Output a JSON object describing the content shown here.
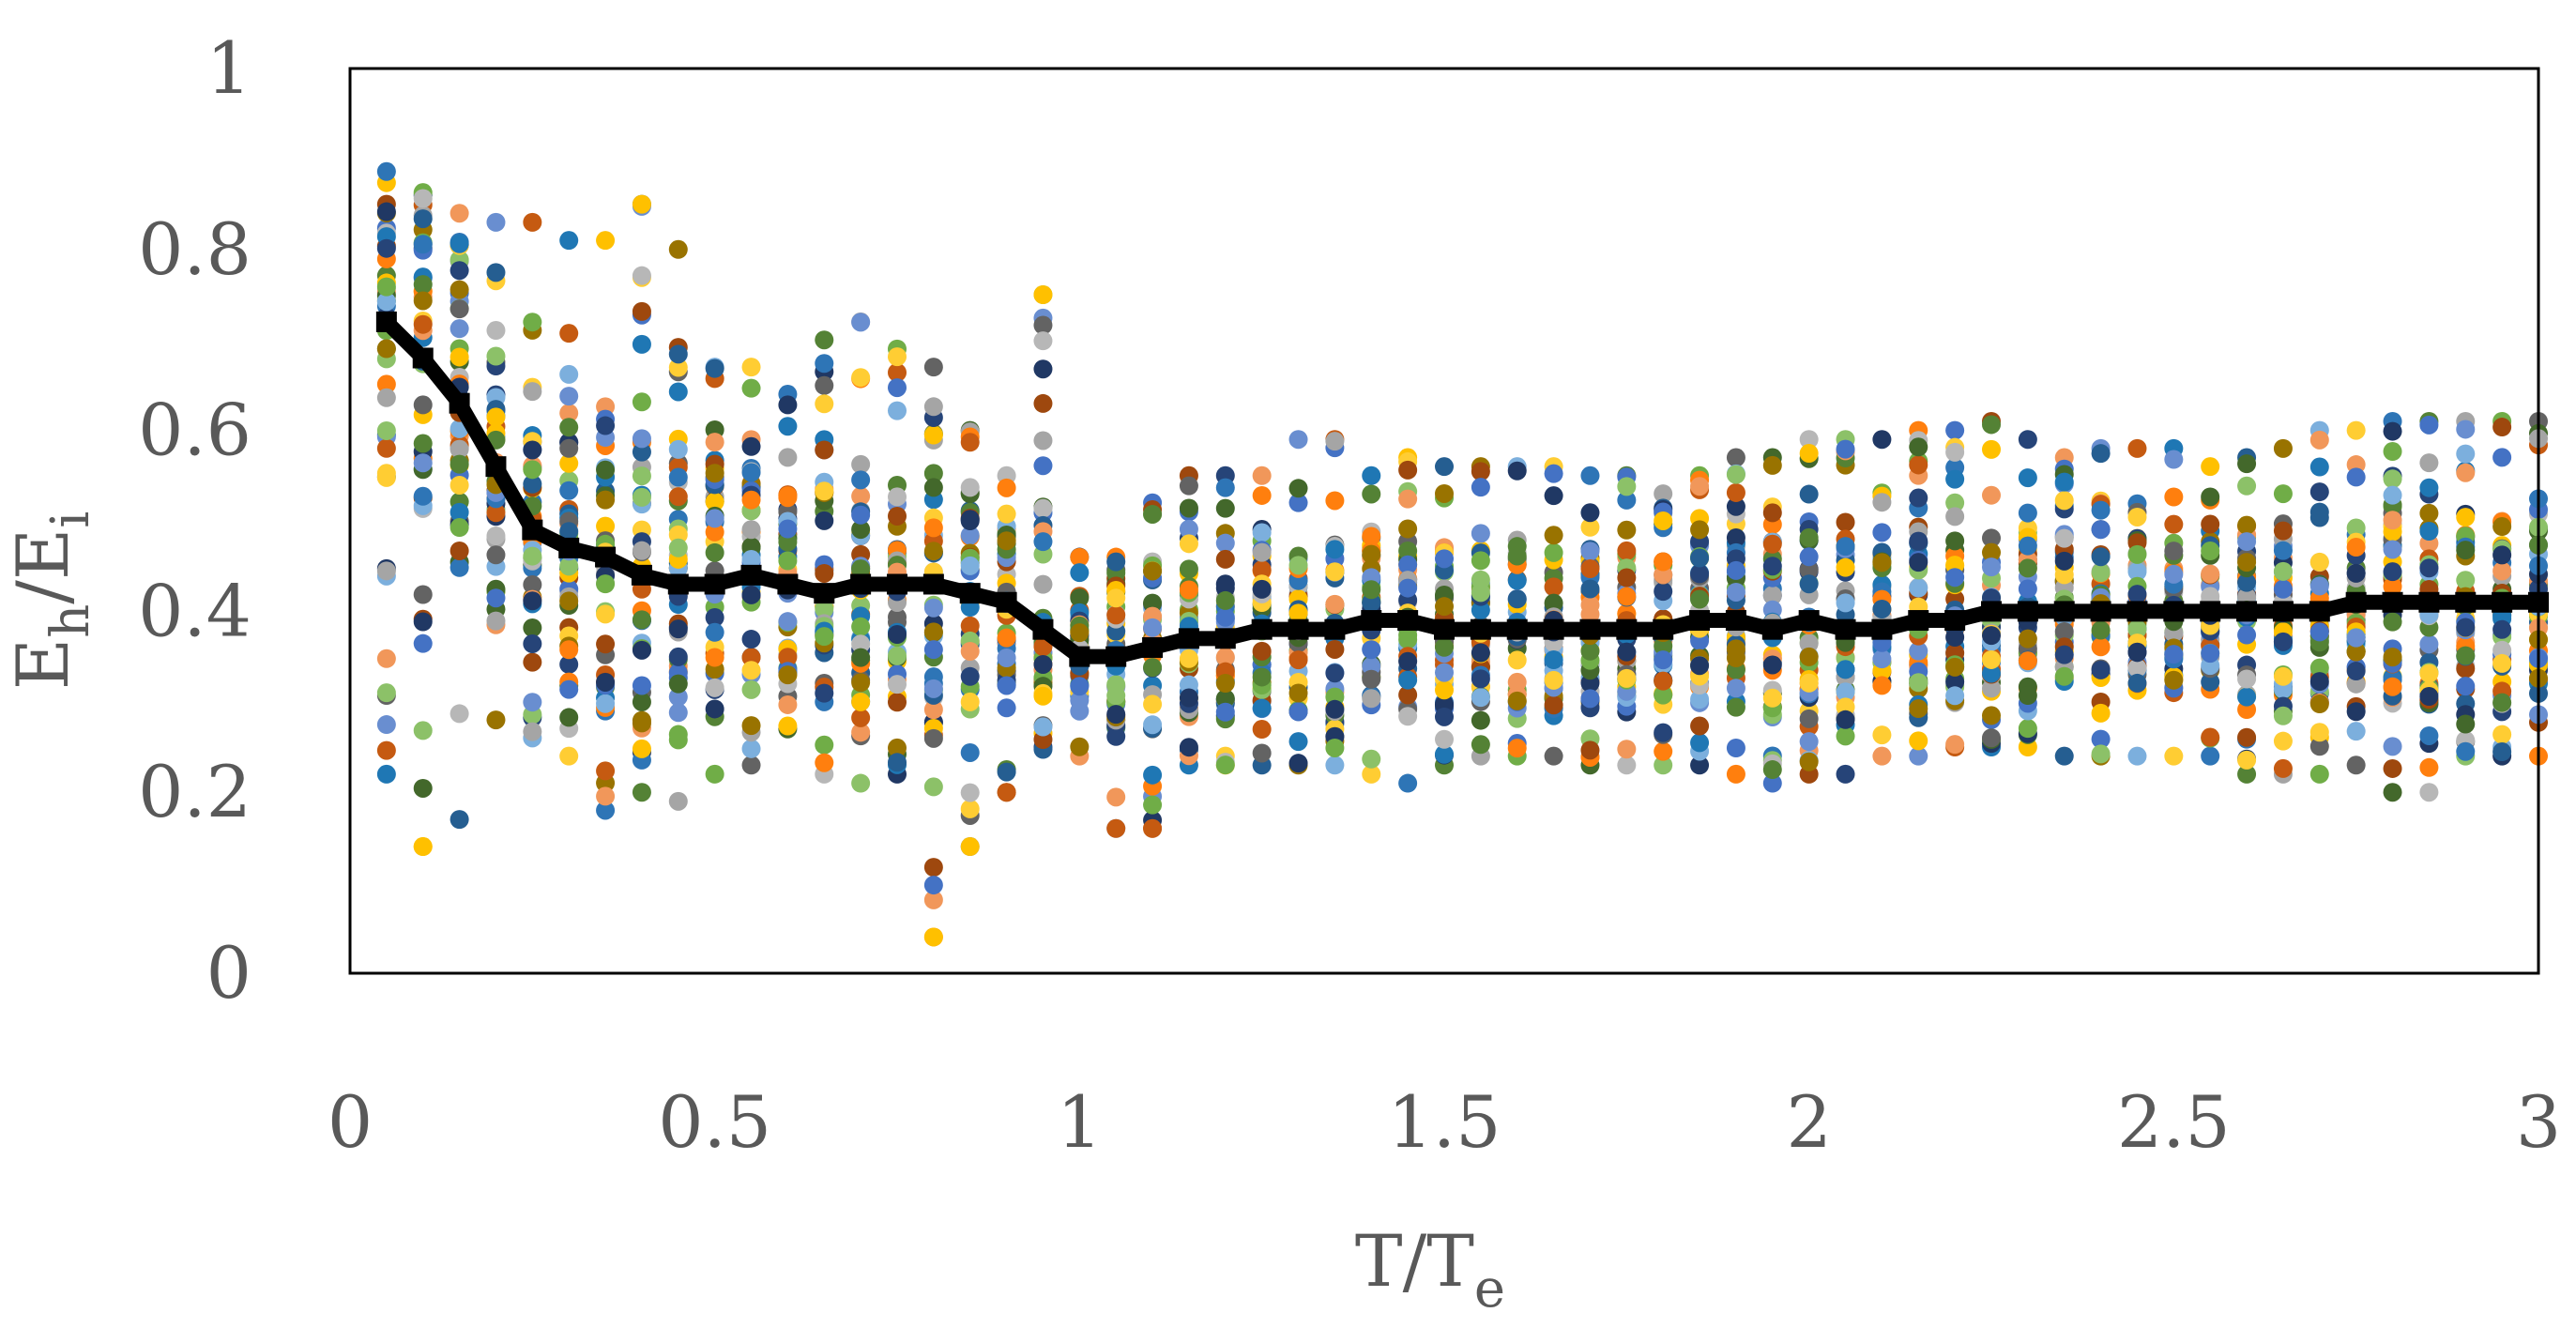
{
  "chart_data": {
    "type": "scatter",
    "title": "",
    "xlabel": {
      "base": "T/T",
      "sub": "e"
    },
    "ylabel": {
      "base1": "E",
      "sub1": "h",
      "mid": "/E",
      "sub2": "i"
    },
    "xlim": [
      0,
      3
    ],
    "ylim": [
      0,
      1
    ],
    "x_ticks": [
      {
        "value": 0,
        "label": "0"
      },
      {
        "value": 0.5,
        "label": "0.5"
      },
      {
        "value": 1,
        "label": "1"
      },
      {
        "value": 1.5,
        "label": "1.5"
      },
      {
        "value": 2,
        "label": "2"
      },
      {
        "value": 2.5,
        "label": "2.5"
      },
      {
        "value": 3,
        "label": "3"
      }
    ],
    "y_ticks": [
      {
        "value": 0,
        "label": "0"
      },
      {
        "value": 0.2,
        "label": "0.2"
      },
      {
        "value": 0.4,
        "label": "0.4"
      },
      {
        "value": 0.6,
        "label": "0.6"
      },
      {
        "value": 0.8,
        "label": "0.8"
      },
      {
        "value": 1,
        "label": "1"
      }
    ],
    "grid": false,
    "legend": "none",
    "point_colors": [
      "#1f77b4",
      "#ff7f0e",
      "#a5a5a5",
      "#ffc000",
      "#4472c4",
      "#70ad47",
      "#255e91",
      "#9e480e",
      "#636363",
      "#997300",
      "#264478",
      "#43682b",
      "#7cafdd",
      "#f1975a",
      "#b7b7b7",
      "#ffcd33",
      "#698ed0",
      "#8cc168",
      "#2e75b6",
      "#c55a11",
      "#203864",
      "#548235"
    ],
    "mean_series": {
      "x": [
        0.05,
        0.1,
        0.15,
        0.2,
        0.25,
        0.3,
        0.35,
        0.4,
        0.45,
        0.5,
        0.55,
        0.6,
        0.65,
        0.7,
        0.75,
        0.8,
        0.85,
        0.9,
        0.95,
        1.0,
        1.05,
        1.1,
        1.15,
        1.2,
        1.25,
        1.3,
        1.35,
        1.4,
        1.45,
        1.5,
        1.55,
        1.6,
        1.65,
        1.7,
        1.75,
        1.8,
        1.85,
        1.9,
        1.95,
        2.0,
        2.05,
        2.1,
        2.15,
        2.2,
        2.25,
        2.3,
        2.35,
        2.4,
        2.45,
        2.5,
        2.55,
        2.6,
        2.65,
        2.7,
        2.75,
        2.8,
        2.85,
        2.9,
        2.95,
        3.0
      ],
      "y": [
        0.72,
        0.68,
        0.63,
        0.56,
        0.49,
        0.47,
        0.46,
        0.44,
        0.43,
        0.43,
        0.44,
        0.43,
        0.42,
        0.43,
        0.43,
        0.43,
        0.42,
        0.41,
        0.38,
        0.35,
        0.35,
        0.36,
        0.37,
        0.37,
        0.38,
        0.38,
        0.38,
        0.39,
        0.39,
        0.38,
        0.38,
        0.38,
        0.38,
        0.38,
        0.38,
        0.38,
        0.39,
        0.39,
        0.38,
        0.39,
        0.38,
        0.38,
        0.39,
        0.39,
        0.4,
        0.4,
        0.4,
        0.4,
        0.4,
        0.4,
        0.4,
        0.4,
        0.4,
        0.4,
        0.41,
        0.41,
        0.41,
        0.41,
        0.41,
        0.41
      ],
      "color": "#000000"
    },
    "scatter_ranges": {
      "x": [
        0.05,
        0.1,
        0.15,
        0.2,
        0.25,
        0.3,
        0.35,
        0.4,
        0.45,
        0.5,
        0.55,
        0.6,
        0.65,
        0.7,
        0.75,
        0.8,
        0.85,
        0.9,
        0.95,
        1.0,
        1.05,
        1.1,
        1.15,
        1.2,
        1.25,
        1.3,
        1.35,
        1.4,
        1.45,
        1.5,
        1.55,
        1.6,
        1.65,
        1.7,
        1.75,
        1.8,
        1.85,
        1.9,
        1.95,
        2.0,
        2.05,
        2.1,
        2.15,
        2.2,
        2.25,
        2.3,
        2.35,
        2.4,
        2.45,
        2.5,
        2.55,
        2.6,
        2.65,
        2.7,
        2.75,
        2.8,
        2.85,
        2.9,
        2.95,
        3.0
      ],
      "y_min": [
        0.22,
        0.14,
        0.17,
        0.28,
        0.26,
        0.24,
        0.18,
        0.2,
        0.19,
        0.22,
        0.23,
        0.27,
        0.22,
        0.21,
        0.22,
        0.04,
        0.14,
        0.2,
        0.25,
        0.24,
        0.16,
        0.16,
        0.23,
        0.23,
        0.23,
        0.23,
        0.23,
        0.22,
        0.21,
        0.23,
        0.24,
        0.24,
        0.24,
        0.23,
        0.23,
        0.23,
        0.23,
        0.22,
        0.21,
        0.22,
        0.22,
        0.24,
        0.24,
        0.25,
        0.25,
        0.25,
        0.24,
        0.24,
        0.24,
        0.24,
        0.24,
        0.22,
        0.22,
        0.22,
        0.23,
        0.2,
        0.2,
        0.24,
        0.24,
        0.24
      ],
      "y_max": [
        0.85,
        0.86,
        0.84,
        0.83,
        0.83,
        0.81,
        0.81,
        0.85,
        0.8,
        0.67,
        0.67,
        0.64,
        0.7,
        0.72,
        0.69,
        0.67,
        0.6,
        0.55,
        0.75,
        0.46,
        0.46,
        0.52,
        0.55,
        0.55,
        0.55,
        0.59,
        0.59,
        0.55,
        0.57,
        0.56,
        0.56,
        0.56,
        0.56,
        0.55,
        0.55,
        0.53,
        0.55,
        0.57,
        0.57,
        0.59,
        0.59,
        0.59,
        0.6,
        0.6,
        0.61,
        0.59,
        0.57,
        0.58,
        0.58,
        0.58,
        0.56,
        0.57,
        0.58,
        0.6,
        0.6,
        0.61,
        0.61,
        0.61,
        0.61,
        0.61
      ],
      "points_per_column": 22
    },
    "outliers": [
      {
        "x": 0.95,
        "y": 0.75,
        "color": "#ffc000"
      },
      {
        "x": 0.8,
        "y": 0.04,
        "color": "#ffc000"
      },
      {
        "x": 0.85,
        "y": 0.14,
        "color": "#ffc000"
      },
      {
        "x": 1.05,
        "y": 0.16,
        "color": "#c55a11"
      },
      {
        "x": 1.1,
        "y": 0.16,
        "color": "#c55a11"
      },
      {
        "x": 0.1,
        "y": 0.14,
        "color": "#ffc000"
      },
      {
        "x": 0.4,
        "y": 0.85,
        "color": "#ffc000"
      },
      {
        "x": 0.05,
        "y": 0.31,
        "color": "#8cc168"
      },
      {
        "x": 0.9,
        "y": 0.2,
        "color": "#c55a11"
      }
    ]
  }
}
